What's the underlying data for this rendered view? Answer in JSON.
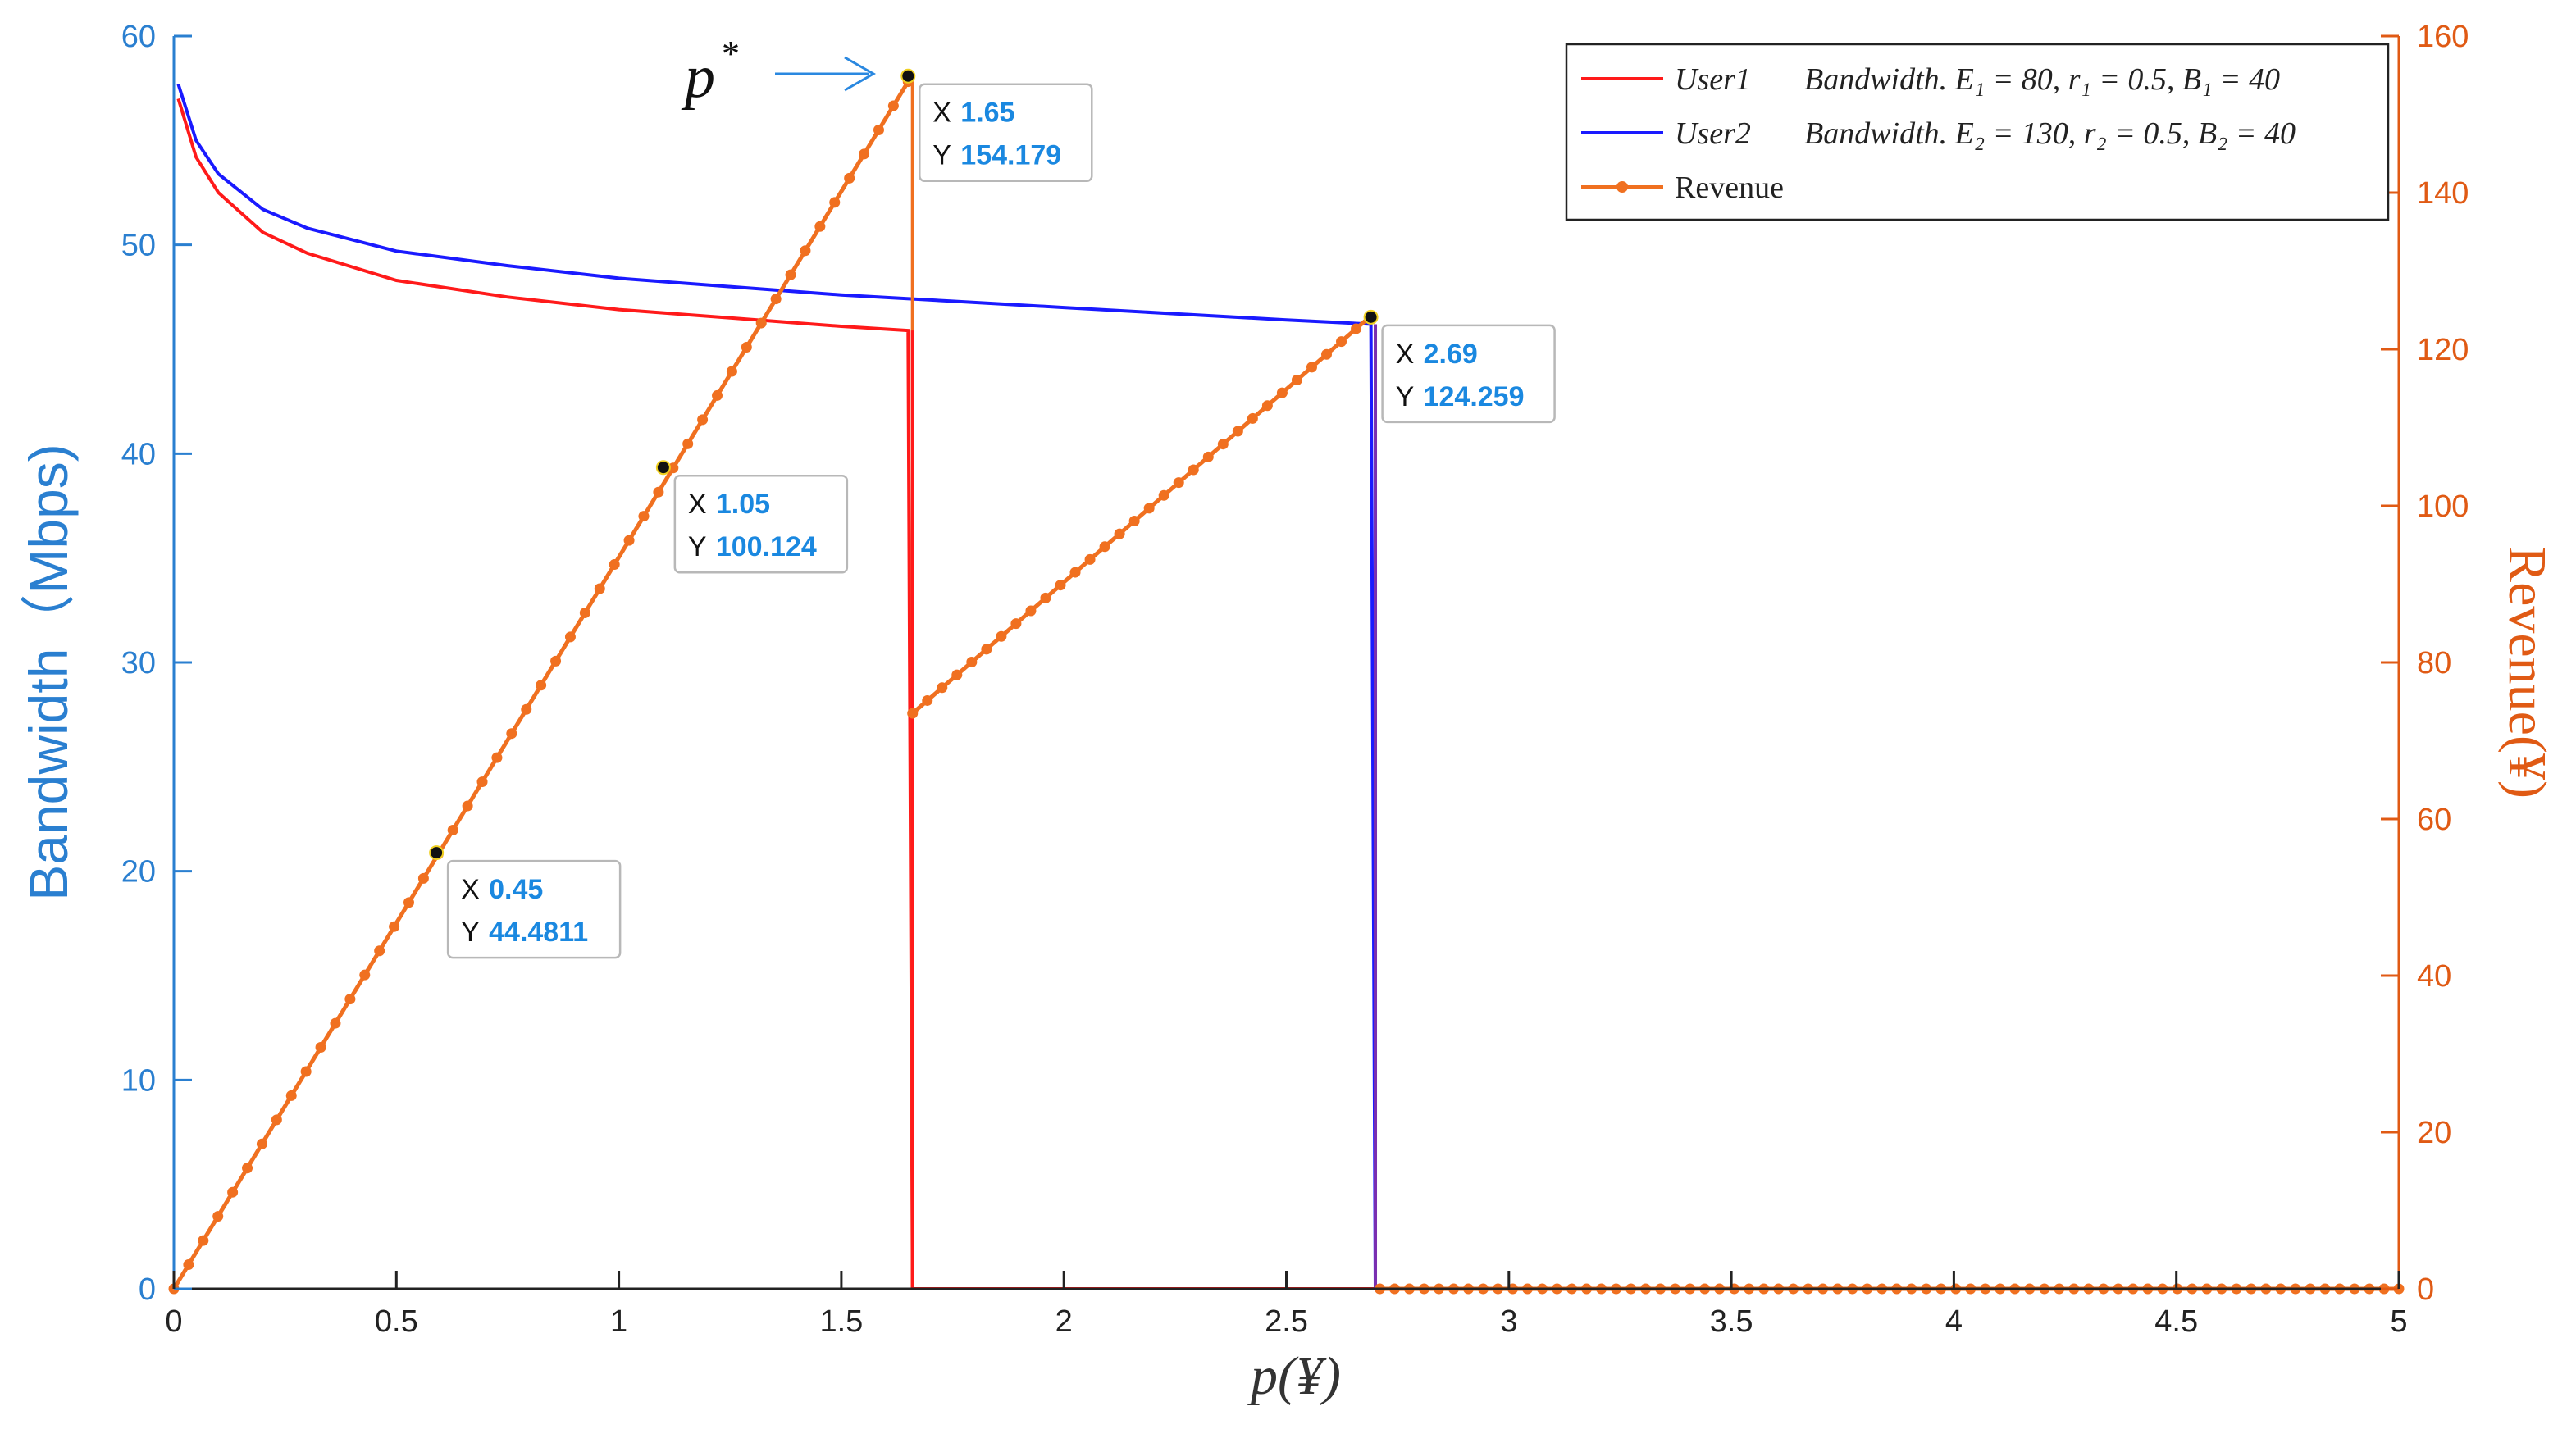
{
  "chart_data": {
    "type": "line",
    "x_label": "p(¥)",
    "x_ticks": [
      "0",
      "0.5",
      "1",
      "1.5",
      "2",
      "2.5",
      "3",
      "3.5",
      "4",
      "4.5",
      "5"
    ],
    "xlim": [
      0,
      5
    ],
    "y_left": {
      "label": "Bandwidth（Mbps)",
      "ticks": [
        "0",
        "10",
        "20",
        "30",
        "40",
        "50",
        "60"
      ],
      "ylim": [
        0,
        60
      ],
      "color": "#2a7fd0"
    },
    "y_right": {
      "label": "Revenue(¥)",
      "ticks": [
        "0",
        "20",
        "40",
        "60",
        "80",
        "100",
        "120",
        "140",
        "160"
      ],
      "ylim": [
        0,
        160
      ],
      "color": "#e05a14"
    },
    "legend_position": "top-right",
    "legend": [
      {
        "name": "User1",
        "desc": "Bandwidth. E₁ = 80, r₁ = 0.5, B₁ = 40",
        "color": "#ff1a1a"
      },
      {
        "name": "User2",
        "desc": "Bandwidth. E₂ = 130, r₂ = 0.5, B₂ = 40",
        "color": "#1a1aff"
      },
      {
        "name": "",
        "desc": "Revenue",
        "color": "#f07020"
      }
    ],
    "series": [
      {
        "name": "User1",
        "axis": "left",
        "color": "#ff1a1a",
        "x": [
          0.01,
          0.05,
          0.1,
          0.2,
          0.3,
          0.5,
          0.75,
          1.0,
          1.25,
          1.5,
          1.65,
          1.66,
          1.67,
          2.0,
          3.0,
          4.0,
          5.0
        ],
        "y": [
          57.0,
          54.2,
          52.5,
          50.6,
          49.6,
          48.3,
          47.5,
          46.9,
          46.5,
          46.1,
          45.9,
          0,
          0,
          0,
          0,
          0,
          0
        ]
      },
      {
        "name": "User2",
        "axis": "left",
        "color": "#1a1aff",
        "x": [
          0.01,
          0.05,
          0.1,
          0.2,
          0.3,
          0.5,
          0.75,
          1.0,
          1.25,
          1.5,
          1.75,
          2.0,
          2.25,
          2.5,
          2.69,
          2.7,
          2.71,
          3.0,
          4.0,
          5.0
        ],
        "y": [
          57.7,
          55.0,
          53.4,
          51.7,
          50.8,
          49.7,
          49.0,
          48.4,
          48.0,
          47.6,
          47.3,
          47.0,
          46.7,
          46.4,
          46.2,
          0,
          0,
          0,
          0,
          0
        ]
      },
      {
        "name": "Revenue",
        "axis": "right",
        "color": "#f07020",
        "segments": [
          {
            "x_start": 0.0,
            "x_end": 1.65,
            "y_start": 0,
            "y_end": 154.179
          },
          {
            "x_start": 1.66,
            "x_end": 2.69,
            "y_start": 73.5,
            "y_end": 124.259
          },
          {
            "x_start": 2.71,
            "x_end": 5.0,
            "y_start": 0,
            "y_end": 0
          }
        ]
      }
    ],
    "vertical_drops": [
      {
        "x": 1.66,
        "from_right_y": 154.179,
        "to": 0,
        "color": "#f07020"
      },
      {
        "x": 1.66,
        "from_left_y": 45.9,
        "to": 0,
        "color": "#ff1a1a"
      },
      {
        "x": 2.7,
        "from_left_y": 46.2,
        "to": 0,
        "color": "#7a2fb0"
      }
    ],
    "datatips": [
      {
        "x_label": "X",
        "x": "0.45",
        "y_label": "Y",
        "y": "44.4811",
        "px": 0.59,
        "py_right": 55.7
      },
      {
        "x_label": "X",
        "x": "1.05",
        "y_label": "Y",
        "y": "100.124",
        "px": 1.1,
        "py_right": 104.9
      },
      {
        "x_label": "X",
        "x": "1.65",
        "y_label": "Y",
        "y": "154.179",
        "px": 1.65,
        "py_right": 154.9
      },
      {
        "x_label": "X",
        "x": "2.69",
        "y_label": "Y",
        "y": "124.259",
        "px": 2.69,
        "py_right": 124.1
      }
    ],
    "annotation": {
      "text": "p",
      "sup": "*",
      "points_to_x": 1.65
    }
  }
}
